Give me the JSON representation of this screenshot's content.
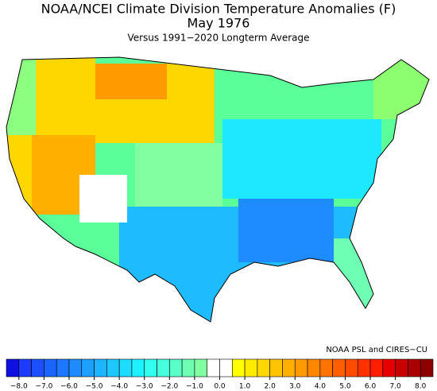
{
  "title": "NOAA/NCEI Climate Division Temperature Anomalies (F)",
  "period": "May 1976",
  "subtitle": "Versus 1991−2020 Longterm Average",
  "credit": "NOAA PSL and CIRES−CU",
  "colorbar": {
    "lim": [
      -8.5,
      8.5
    ],
    "colors": [
      "#1010e0",
      "#1e3cff",
      "#1c50ff",
      "#1c64ff",
      "#1e78ff",
      "#1e8cff",
      "#1ea0ff",
      "#1eb4ff",
      "#1ec8ff",
      "#1edcff",
      "#1ef0ff",
      "#32fff0",
      "#46ffdc",
      "#5affc8",
      "#6effb4",
      "#82ffa0",
      "#ffffff",
      "#ffffff",
      "#ffff00",
      "#ffeb00",
      "#ffd700",
      "#ffc300",
      "#ffaf00",
      "#ff9b00",
      "#ff8700",
      "#ff7300",
      "#ff5f00",
      "#ff4b00",
      "#ff3200",
      "#ff1e00",
      "#e60000",
      "#c80000",
      "#aa0000",
      "#8c0000"
    ],
    "ticks": [
      {
        "value": -8,
        "label": "−8.0"
      },
      {
        "value": -7,
        "label": "−7.0"
      },
      {
        "value": -6,
        "label": "−6.0"
      },
      {
        "value": -5,
        "label": "−5.0"
      },
      {
        "value": -4,
        "label": "−4.0"
      },
      {
        "value": -3,
        "label": "−3.0"
      },
      {
        "value": -2,
        "label": "−2.0"
      },
      {
        "value": -1,
        "label": "−1.0"
      },
      {
        "value": 0,
        "label": "0.0"
      },
      {
        "value": 1,
        "label": "1.0"
      },
      {
        "value": 2,
        "label": "2.0"
      },
      {
        "value": 3,
        "label": "3.0"
      },
      {
        "value": 4,
        "label": "4.0"
      },
      {
        "value": 5,
        "label": "5.0"
      },
      {
        "value": 6,
        "label": "6.0"
      },
      {
        "value": 7,
        "label": "7.0"
      },
      {
        "value": 8,
        "label": "8.0"
      }
    ]
  }
}
